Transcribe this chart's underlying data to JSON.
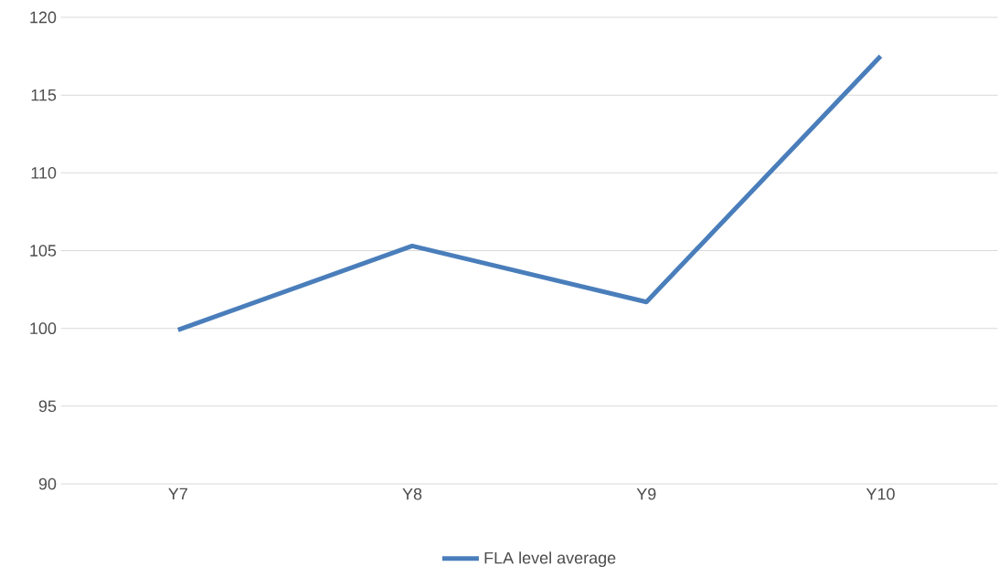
{
  "chart_data": {
    "type": "line",
    "categories": [
      "Y7",
      "Y8",
      "Y9",
      "Y10"
    ],
    "series": [
      {
        "name": "FLA level average",
        "color": "#4a7ebb",
        "values": [
          99.9,
          105.3,
          101.7,
          117.5
        ]
      }
    ],
    "ylim": [
      90,
      120
    ],
    "yticks": [
      90,
      95,
      100,
      105,
      110,
      115,
      120
    ],
    "grid": "y",
    "legend": "bottom"
  }
}
